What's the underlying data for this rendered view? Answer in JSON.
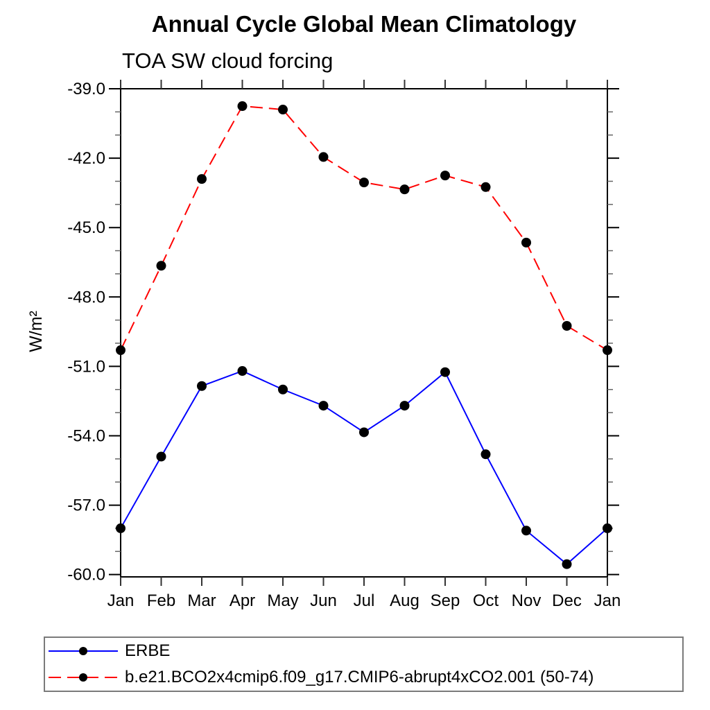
{
  "chart_data": {
    "type": "line",
    "title": "Annual Cycle Global Mean Climatology",
    "subtitle": "TOA SW cloud forcing",
    "ylabel": "W/m²",
    "xlabel": "",
    "categories": [
      "Jan",
      "Feb",
      "Mar",
      "Apr",
      "May",
      "Jun",
      "Jul",
      "Aug",
      "Sep",
      "Oct",
      "Nov",
      "Dec",
      "Jan"
    ],
    "ylim": [
      -60.1,
      -39.0
    ],
    "ytick_major": [
      -39.0,
      -42.0,
      -45.0,
      -48.0,
      -51.0,
      -54.0,
      -57.0,
      -60.0
    ],
    "ytick_minor_step": 1.0,
    "ytick_decimals": 1,
    "grid": false,
    "legend_position": "bottom-left",
    "frame_color": "#000000",
    "marker_color": "#000000",
    "series": [
      {
        "name": "ERBE",
        "color": "#0000ff",
        "dash": "solid",
        "marker": "circle",
        "values": [
          -58.0,
          -54.9,
          -51.85,
          -51.2,
          -52.0,
          -52.7,
          -53.85,
          -52.7,
          -51.25,
          -54.8,
          -58.1,
          -59.55,
          -58.0
        ]
      },
      {
        "name": "b.e21.BCO2x4cmip6.f09_g17.CMIP6-abrupt4xCO2.001 (50-74)",
        "color": "#ff0000",
        "dash": "dashed",
        "marker": "circle",
        "values": [
          -50.3,
          -46.65,
          -42.9,
          -39.75,
          -39.9,
          -41.95,
          -43.05,
          -43.35,
          -42.75,
          -43.25,
          -45.65,
          -49.25,
          -50.3
        ]
      }
    ]
  }
}
